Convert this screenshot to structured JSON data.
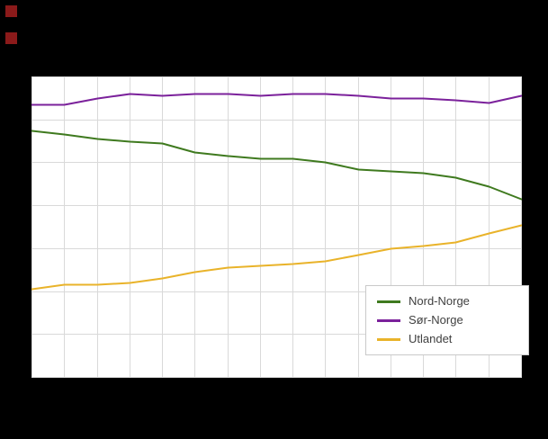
{
  "page": {
    "background": "#000000",
    "plot_background": "#ffffff",
    "grid_color": "#d9d9d9"
  },
  "decor": {
    "squares": [
      {
        "name": "logo-fragment-top",
        "color": "#8b1a1a"
      },
      {
        "name": "logo-fragment-bottom",
        "color": "#8b1a1a"
      }
    ]
  },
  "chart_data": {
    "type": "line",
    "title": "",
    "xlabel": "",
    "ylabel": "",
    "x": [
      1,
      2,
      3,
      4,
      5,
      6,
      7,
      8,
      9,
      10,
      11,
      12,
      13,
      14,
      15,
      16
    ],
    "series": [
      {
        "name": "Nord-Norge",
        "color": "#3f7a1f",
        "values": [
          57.5,
          56.5,
          55.5,
          55.0,
          54.5,
          52.5,
          51.5,
          51.0,
          51.0,
          50.0,
          48.5,
          48.0,
          47.5,
          46.5,
          44.5,
          41.5
        ]
      },
      {
        "name": "Sør-Norge",
        "color": "#7b219b",
        "values": [
          63.5,
          63.5,
          65.0,
          66.0,
          65.5,
          66.0,
          66.0,
          65.5,
          66.0,
          66.0,
          65.5,
          65.0,
          65.0,
          64.5,
          64.0,
          65.5
        ]
      },
      {
        "name": "Utlandet",
        "color": "#e9b32a",
        "values": [
          20.5,
          21.5,
          21.5,
          22.0,
          23.0,
          24.5,
          25.5,
          26.0,
          26.5,
          27.0,
          28.5,
          30.0,
          30.5,
          31.5,
          33.5,
          35.5
        ]
      }
    ],
    "ylim": [
      0,
      70
    ],
    "y_gridline_step": 10,
    "grid": true,
    "legend_position": "inside-bottom-right",
    "axis_tick_labels_visible": false
  }
}
